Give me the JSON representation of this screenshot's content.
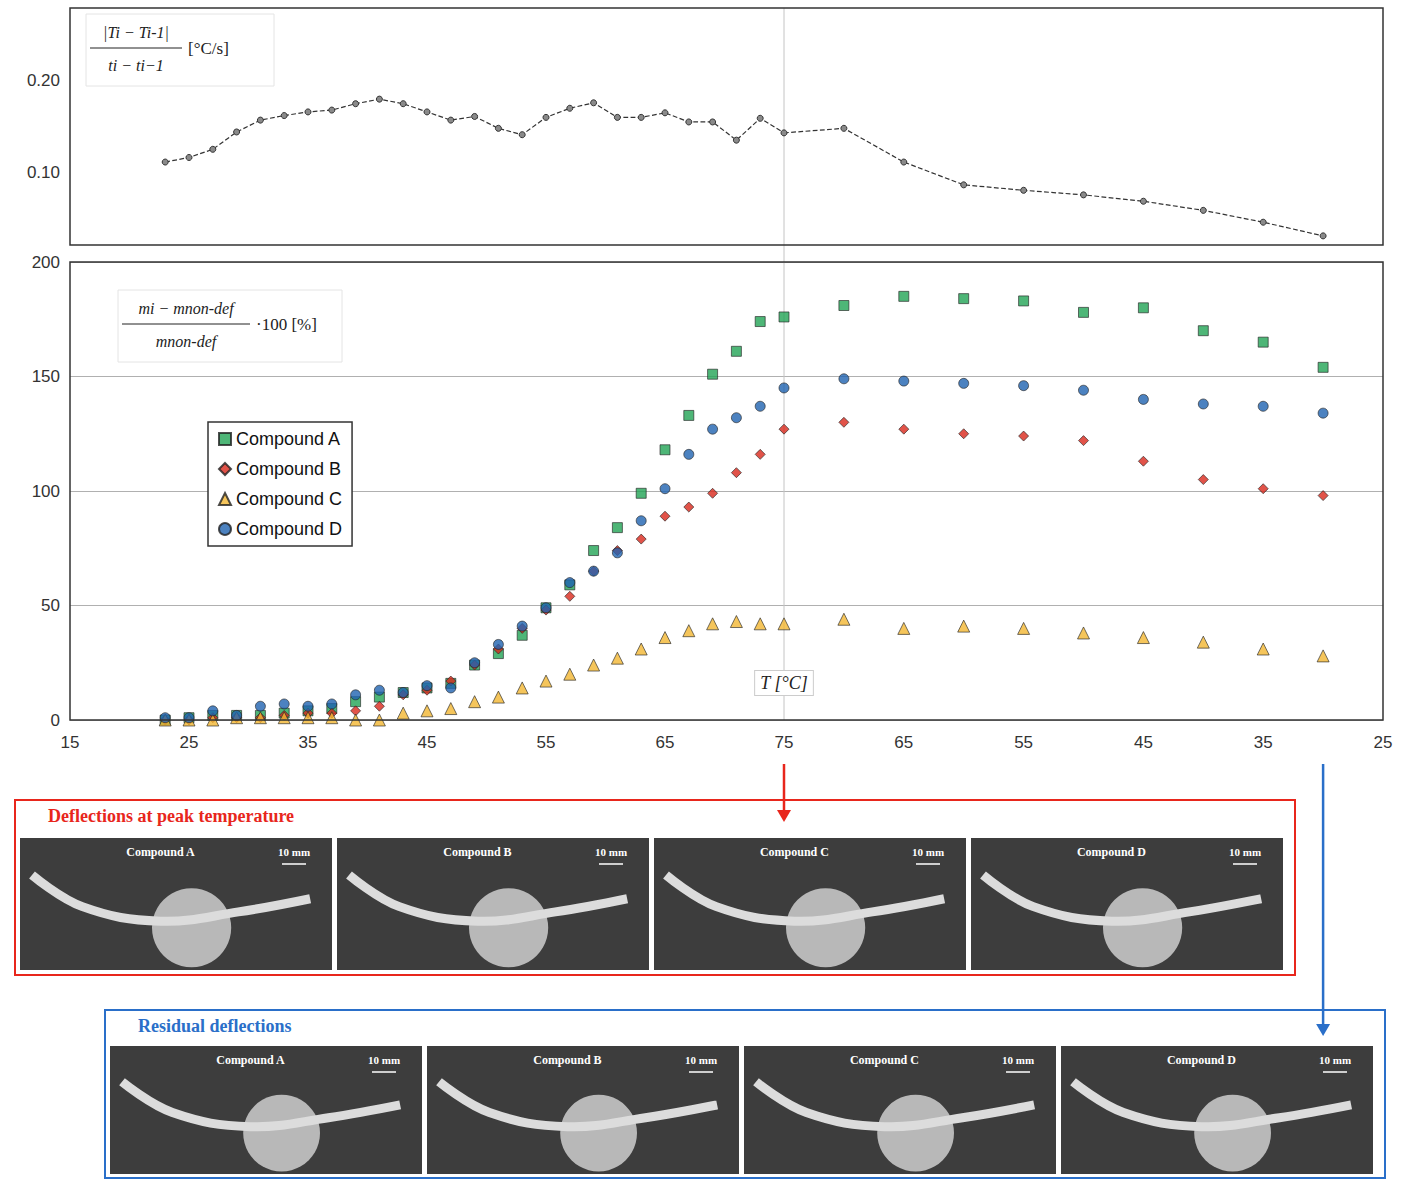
{
  "chart_data": [
    {
      "type": "line",
      "ylabel": {
        "numerator": "|Ti − Ti-1|",
        "denominator": "ti − ti−1",
        "unit": "[°C/s]"
      },
      "ylim": [
        0.02,
        0.28
      ],
      "yticks": [
        {
          "value": 0.1,
          "label": "0.10"
        },
        {
          "value": 0.2,
          "label": "0.20"
        }
      ],
      "tick_labels": "y",
      "grid": false,
      "marker": "circle",
      "line_style": "dashed",
      "color": "#333333",
      "segments": [
        {
          "xlim": [
            15,
            75
          ],
          "x": [
            23,
            25,
            27,
            29,
            31,
            33,
            35,
            37,
            39,
            41,
            43,
            45,
            47,
            49,
            51,
            53,
            55,
            57,
            59,
            61,
            63,
            65,
            67,
            69,
            71,
            73,
            75
          ],
          "values": [
            0.111,
            0.116,
            0.125,
            0.144,
            0.157,
            0.162,
            0.166,
            0.168,
            0.175,
            0.18,
            0.175,
            0.166,
            0.157,
            0.161,
            0.148,
            0.141,
            0.16,
            0.17,
            0.176,
            0.16,
            0.16,
            0.165,
            0.155,
            0.155,
            0.135,
            0.159,
            0.143
          ]
        },
        {
          "xlim": [
            75,
            25
          ],
          "x": [
            70,
            65,
            60,
            55,
            50,
            45,
            40,
            35,
            30
          ],
          "values": [
            0.148,
            0.111,
            0.086,
            0.08,
            0.075,
            0.068,
            0.058,
            0.045,
            0.03
          ]
        }
      ]
    },
    {
      "type": "scatter",
      "xlabel": "T [°C]",
      "ylabel": {
        "numerator": "mi − mnon-def",
        "denominator": "mnon-def",
        "unit": "·100 [%]"
      },
      "ylim": [
        0,
        200
      ],
      "yticks": [
        0,
        50,
        100,
        150,
        200
      ],
      "grid": true,
      "legend": "left",
      "segments": [
        {
          "xlim": [
            15,
            75
          ],
          "xticks": [
            15,
            25,
            35,
            45,
            55,
            65,
            75
          ],
          "x": [
            23,
            25,
            27,
            29,
            31,
            33,
            35,
            37,
            39,
            41,
            43,
            45,
            47,
            49,
            51,
            53,
            55,
            57,
            59,
            61,
            63,
            65,
            67,
            69,
            71,
            73,
            75
          ]
        },
        {
          "xlim": [
            75,
            25
          ],
          "xticks": [
            65,
            55,
            45,
            35,
            25
          ],
          "x": [
            70,
            65,
            60,
            55,
            50,
            45,
            40,
            35,
            30
          ]
        }
      ],
      "series": [
        {
          "name": "Compound A",
          "color": "#22a455",
          "marker": "square",
          "values": [
            [
              0,
              1,
              2,
              2,
              2,
              3,
              4,
              5,
              8,
              10,
              12,
              14,
              16,
              24,
              29,
              37,
              49,
              59,
              74,
              84,
              99,
              118,
              133,
              151,
              161,
              174,
              176
            ],
            [
              181,
              185,
              184,
              183,
              178,
              180,
              170,
              165,
              154
            ]
          ]
        },
        {
          "name": "Compound B",
          "color": "#d9281c",
          "marker": "diamond",
          "values": [
            [
              0,
              0,
              1,
              1,
              1,
              2,
              3,
              3,
              4,
              6,
              11,
              13,
              17,
              24,
              31,
              40,
              48,
              54,
              65,
              74,
              79,
              89,
              93,
              99,
              108,
              116,
              127
            ],
            [
              130,
              127,
              125,
              124,
              122,
              113,
              105,
              101,
              98
            ]
          ]
        },
        {
          "name": "Compound C",
          "color": "#f2b632",
          "marker": "triangle",
          "values": [
            [
              0,
              0,
              0,
              1,
              1,
              1,
              1,
              1,
              0,
              0,
              3,
              4,
              5,
              8,
              10,
              14,
              17,
              20,
              24,
              27,
              31,
              36,
              39,
              42,
              43,
              42,
              42
            ],
            [
              44,
              40,
              41,
              40,
              38,
              36,
              34,
              31,
              28
            ]
          ]
        },
        {
          "name": "Compound D",
          "color": "#1f63b0",
          "marker": "circle",
          "values": [
            [
              1,
              1,
              4,
              2,
              6,
              7,
              6,
              7,
              11,
              13,
              12,
              15,
              14,
              25,
              33,
              41,
              49,
              60,
              65,
              73,
              87,
              101,
              116,
              127,
              132,
              137,
              145
            ],
            [
              149,
              148,
              147,
              146,
              144,
              140,
              138,
              137,
              134
            ]
          ]
        }
      ]
    }
  ],
  "panels": [
    {
      "title": "Deflections at peak temperature",
      "color": "#e8261c",
      "images": [
        {
          "label": "Compound A",
          "scale": "10 mm"
        },
        {
          "label": "Compound B",
          "scale": "10 mm"
        },
        {
          "label": "Compound C",
          "scale": "10 mm"
        },
        {
          "label": "Compound D",
          "scale": "10 mm"
        }
      ]
    },
    {
      "title": "Residual deflections",
      "color": "#2a6fc9",
      "images": [
        {
          "label": "Compound A",
          "scale": "10 mm"
        },
        {
          "label": "Compound B",
          "scale": "10 mm"
        },
        {
          "label": "Compound C",
          "scale": "10 mm"
        },
        {
          "label": "Compound D",
          "scale": "10 mm"
        }
      ]
    }
  ]
}
